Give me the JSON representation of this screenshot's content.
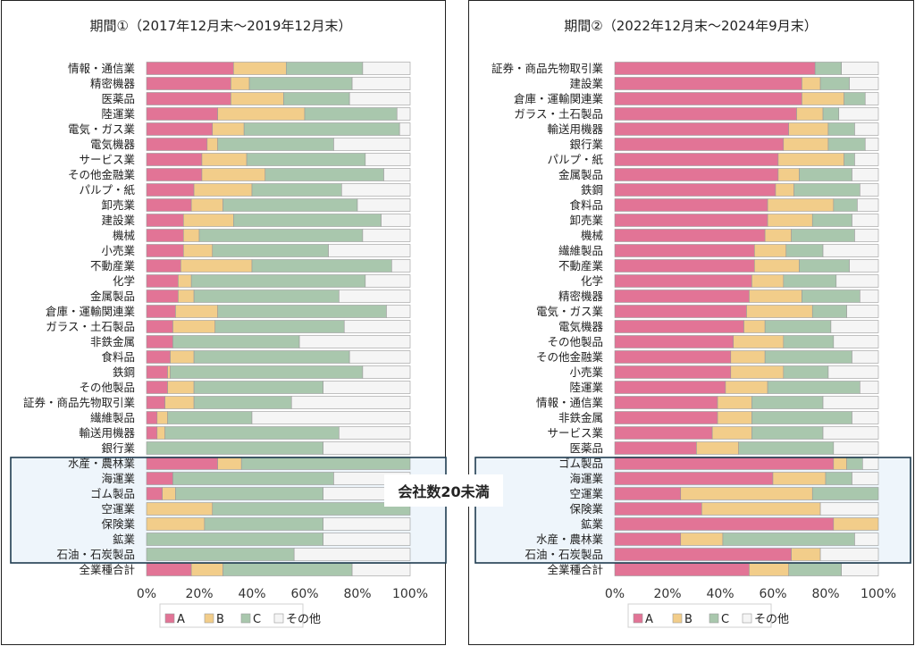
{
  "annotation": "会社数20未満",
  "colors": {
    "A": "#e27496",
    "B": "#f2cd8a",
    "C": "#a9c7ad",
    "other": "#f5f5f5"
  },
  "chart_data": [
    {
      "type": "bar",
      "orientation": "horizontal",
      "stacked": true,
      "title": "期間①（2017年12月末～2019年12月末）",
      "xlim": [
        0,
        100
      ],
      "x_ticks": [
        "0%",
        "20%",
        "40%",
        "60%",
        "80%",
        "100%"
      ],
      "grid": false,
      "legend_position": "bottom",
      "legend": [
        "A",
        "B",
        "C",
        "その他"
      ],
      "highlight_label": "会社数20未満",
      "highlight_categories": [
        "水産・農林業",
        "海運業",
        "ゴム製品",
        "空運業",
        "保険業",
        "鉱業",
        "石油・石炭製品"
      ],
      "categories": [
        "情報・通信業",
        "精密機器",
        "医薬品",
        "陸運業",
        "電気・ガス業",
        "電気機器",
        "サービス業",
        "その他金融業",
        "パルプ・紙",
        "卸売業",
        "建設業",
        "機械",
        "小売業",
        "不動産業",
        "化学",
        "金属製品",
        "倉庫・運輸関連業",
        "ガラス・土石製品",
        "非鉄金属",
        "食料品",
        "鉄鋼",
        "その他製品",
        "証券・商品先物取引業",
        "繊維製品",
        "輸送用機器",
        "銀行業",
        "水産・農林業",
        "海運業",
        "ゴム製品",
        "空運業",
        "保険業",
        "鉱業",
        "石油・石炭製品",
        "全業種合計"
      ],
      "series": [
        {
          "name": "A",
          "values": [
            33,
            32,
            32,
            27,
            25,
            23,
            21,
            21,
            18,
            17,
            14,
            14,
            14,
            13,
            12,
            12,
            11,
            10,
            10,
            9,
            8,
            8,
            7,
            4,
            4,
            0,
            27,
            10,
            6,
            0,
            0,
            0,
            0,
            17
          ]
        },
        {
          "name": "B",
          "values": [
            20,
            7,
            20,
            33,
            12,
            4,
            17,
            24,
            22,
            12,
            19,
            6,
            11,
            27,
            5,
            6,
            16,
            16,
            0,
            9,
            1,
            10,
            11,
            4,
            3,
            0,
            9,
            0,
            5,
            25,
            22,
            0,
            0,
            12
          ]
        },
        {
          "name": "C",
          "values": [
            29,
            39,
            25,
            35,
            59,
            44,
            45,
            45,
            34,
            51,
            56,
            62,
            44,
            53,
            66,
            55,
            64,
            49,
            48,
            59,
            73,
            49,
            37,
            32,
            66,
            67,
            64,
            61,
            56,
            75,
            45,
            67,
            56,
            49
          ]
        },
        {
          "name": "その他",
          "values": [
            18,
            22,
            23,
            5,
            4,
            29,
            17,
            10,
            26,
            20,
            11,
            18,
            31,
            7,
            17,
            27,
            9,
            25,
            42,
            23,
            18,
            33,
            45,
            60,
            27,
            33,
            0,
            29,
            33,
            0,
            33,
            33,
            44,
            22
          ]
        }
      ]
    },
    {
      "type": "bar",
      "orientation": "horizontal",
      "stacked": true,
      "title": "期間②（2022年12月末～2024年9月末）",
      "xlim": [
        0,
        100
      ],
      "x_ticks": [
        "0%",
        "20%",
        "40%",
        "60%",
        "80%",
        "100%"
      ],
      "grid": false,
      "legend_position": "bottom",
      "legend": [
        "A",
        "B",
        "C",
        "その他"
      ],
      "highlight_label": "会社数20未満",
      "highlight_categories": [
        "ゴム製品",
        "海運業",
        "空運業",
        "保険業",
        "鉱業",
        "水産・農林業",
        "石油・石炭製品"
      ],
      "categories": [
        "証券・商品先物取引業",
        "建設業",
        "倉庫・運輸関連業",
        "ガラス・土石製品",
        "輸送用機器",
        "銀行業",
        "パルプ・紙",
        "金属製品",
        "鉄鋼",
        "食料品",
        "卸売業",
        "機械",
        "繊維製品",
        "不動産業",
        "化学",
        "精密機器",
        "電気・ガス業",
        "電気機器",
        "その他製品",
        "その他金融業",
        "小売業",
        "陸運業",
        "情報・通信業",
        "非鉄金属",
        "サービス業",
        "医薬品",
        "ゴム製品",
        "海運業",
        "空運業",
        "保険業",
        "鉱業",
        "水産・農林業",
        "石油・石炭製品",
        "全業種合計"
      ],
      "series": [
        {
          "name": "A",
          "values": [
            76,
            71,
            71,
            69,
            66,
            64,
            62,
            62,
            61,
            58,
            58,
            57,
            53,
            53,
            52,
            51,
            50,
            49,
            45,
            44,
            44,
            42,
            39,
            39,
            37,
            31,
            83,
            60,
            25,
            33,
            83,
            25,
            67,
            51
          ]
        },
        {
          "name": "B",
          "values": [
            0,
            7,
            16,
            10,
            15,
            17,
            25,
            8,
            7,
            25,
            17,
            10,
            12,
            17,
            12,
            20,
            25,
            8,
            19,
            13,
            20,
            16,
            13,
            13,
            15,
            16,
            5,
            20,
            50,
            45,
            17,
            16,
            11,
            15
          ]
        },
        {
          "name": "C",
          "values": [
            10,
            11,
            8,
            6,
            10,
            14,
            4,
            20,
            25,
            9,
            15,
            24,
            14,
            19,
            20,
            22,
            13,
            25,
            19,
            33,
            17,
            35,
            27,
            38,
            27,
            36,
            6,
            10,
            25,
            0,
            0,
            50,
            0,
            20
          ]
        },
        {
          "name": "その他",
          "values": [
            14,
            11,
            5,
            15,
            9,
            5,
            9,
            10,
            7,
            8,
            10,
            9,
            21,
            11,
            16,
            7,
            12,
            18,
            17,
            10,
            19,
            7,
            21,
            10,
            21,
            17,
            6,
            10,
            0,
            22,
            0,
            9,
            22,
            14
          ]
        }
      ]
    }
  ]
}
